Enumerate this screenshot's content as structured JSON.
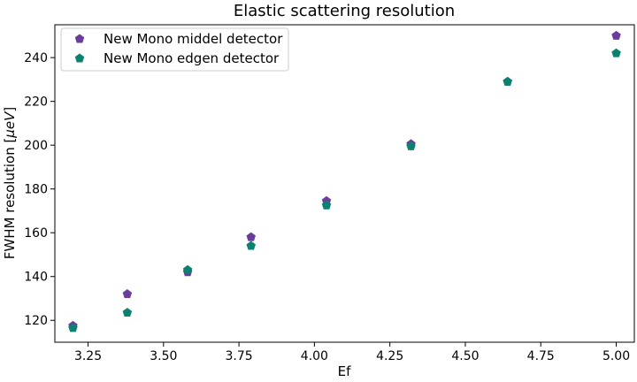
{
  "chart_data": {
    "type": "scatter",
    "title": "Elastic scattering resolution",
    "xlabel": "Ef",
    "ylabel_prefix": "FWHM resolution [",
    "ylabel_unit": "μeV",
    "ylabel_suffix": "]",
    "xlim": [
      3.14,
      5.06
    ],
    "ylim": [
      110,
      255
    ],
    "x_ticks": [
      3.25,
      3.5,
      3.75,
      4.0,
      4.25,
      4.5,
      4.75,
      5.0
    ],
    "x_tick_labels": [
      "3.25",
      "3.50",
      "3.75",
      "4.00",
      "4.25",
      "4.50",
      "4.75",
      "5.00"
    ],
    "y_ticks": [
      120,
      140,
      160,
      180,
      200,
      220,
      240
    ],
    "y_tick_labels": [
      "120",
      "140",
      "160",
      "180",
      "200",
      "220",
      "240"
    ],
    "grid": false,
    "legend_position": "top-left",
    "marker": "pentagon",
    "series": [
      {
        "name": "New Mono middel detector",
        "color": "#6a3d9a",
        "x": [
          3.2,
          3.38,
          3.58,
          3.79,
          4.04,
          4.32,
          4.64,
          5.0
        ],
        "y": [
          117.5,
          132,
          142,
          158,
          174.5,
          200.5,
          229,
          250
        ]
      },
      {
        "name": "New Mono edgen detector",
        "color": "#0b8270",
        "x": [
          3.2,
          3.38,
          3.58,
          3.79,
          4.04,
          4.32,
          4.64,
          5.0
        ],
        "y": [
          116.5,
          123.5,
          143,
          154,
          172.5,
          199.5,
          229,
          242
        ]
      }
    ]
  }
}
